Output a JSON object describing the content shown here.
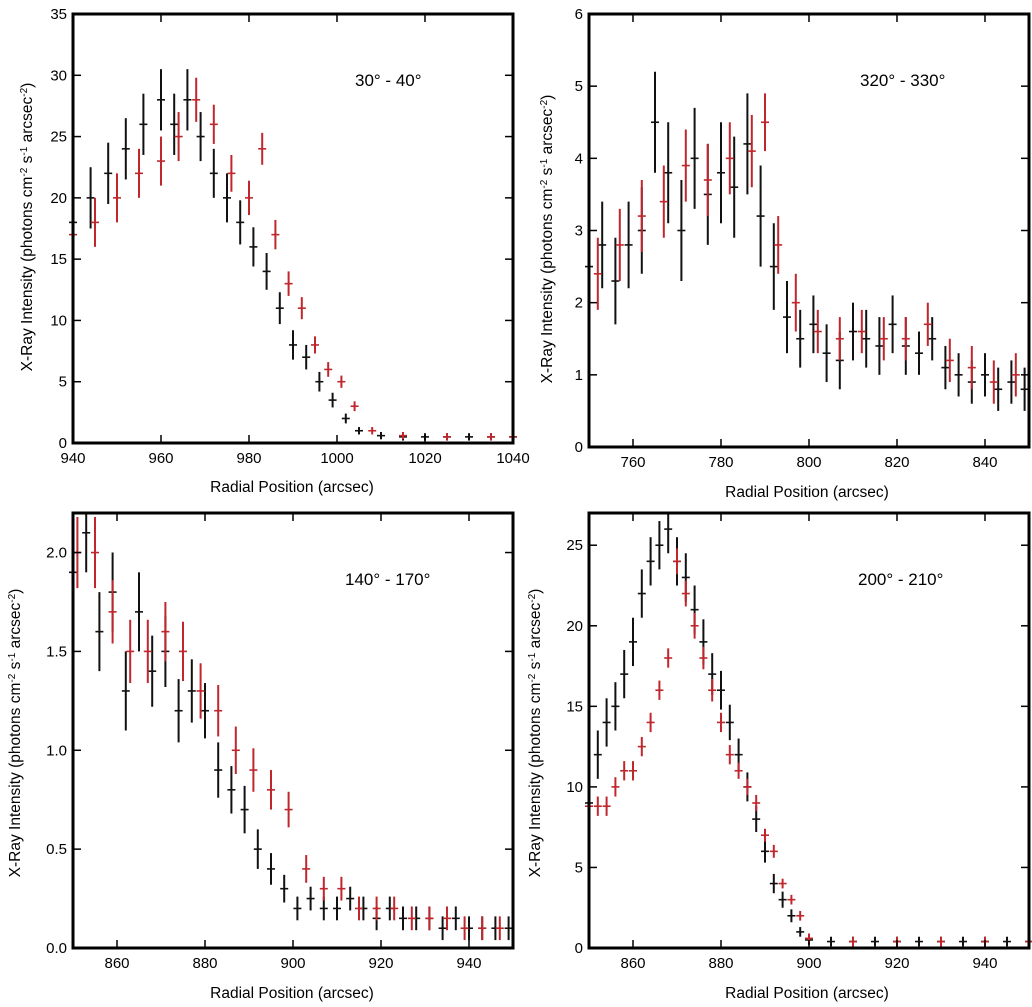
{
  "colors": {
    "series_black": "#111111",
    "series_red": "#c0272d",
    "frame": "#000000"
  },
  "chart_data": [
    {
      "type": "scatter",
      "title": "",
      "annotation": "30° - 40°",
      "xlabel": "Radial Position (arcsec)",
      "ylabel_main": "X-Ray Intensity (photons cm",
      "ylabel_sup1": "-2",
      "ylabel_mid1": " s",
      "ylabel_sup2": "-1",
      "ylabel_mid2": " arcsec",
      "ylabel_sup3": "-2",
      "ylabel_end": ")",
      "xlim": [
        940,
        1040
      ],
      "ylim": [
        0,
        35
      ],
      "xticks": [
        940,
        960,
        980,
        1000,
        1020,
        1040
      ],
      "xtick_labels": [
        "940",
        "960",
        "980",
        "1000",
        "1020",
        "1040"
      ],
      "yticks": [
        0,
        5,
        10,
        15,
        20,
        25,
        30,
        35
      ],
      "ytick_labels": [
        "0",
        "5",
        "10",
        "15",
        "20",
        "25",
        "30",
        "35"
      ],
      "series": [
        {
          "name": "black",
          "x": [
            940,
            944,
            948,
            952,
            956,
            960,
            963,
            966,
            969,
            972,
            975,
            978,
            981,
            984,
            987,
            990,
            993,
            996,
            999,
            1002,
            1005,
            1010,
            1015,
            1020,
            1025,
            1030,
            1035,
            1040
          ],
          "y": [
            18,
            20,
            22,
            24,
            26,
            28,
            26,
            28,
            25,
            22,
            20,
            18,
            16,
            14,
            11,
            8,
            7,
            5,
            3.5,
            2,
            1,
            0.6,
            0.5,
            0.5,
            0.5,
            0.5,
            0.5,
            0.5
          ],
          "err": [
            2.5,
            2.5,
            2.5,
            2.5,
            2.5,
            2.5,
            2.5,
            2.5,
            2,
            2,
            2,
            1.8,
            1.6,
            1.5,
            1.3,
            1.2,
            1,
            0.8,
            0.6,
            0.4,
            0.3,
            0.3,
            0.3,
            0.3,
            0.3,
            0.3,
            0.3,
            0.3
          ]
        },
        {
          "name": "red",
          "x": [
            940,
            945,
            950,
            955,
            960,
            964,
            968,
            972,
            976,
            980,
            983,
            986,
            989,
            992,
            995,
            998,
            1001,
            1004,
            1008,
            1015,
            1025,
            1035,
            1040
          ],
          "y": [
            17,
            18,
            20,
            22,
            23,
            25,
            28,
            26,
            22,
            20,
            24,
            17,
            13,
            11,
            8,
            6,
            5,
            3,
            1,
            0.6,
            0.5,
            0.5,
            0.5
          ],
          "err": [
            2,
            2,
            2,
            2,
            2,
            2,
            1.8,
            1.6,
            1.5,
            1.4,
            1.3,
            1.2,
            1,
            0.9,
            0.7,
            0.6,
            0.5,
            0.4,
            0.3,
            0.3,
            0.3,
            0.3,
            0.3
          ]
        }
      ]
    },
    {
      "type": "scatter",
      "title": "",
      "annotation": "320° - 330°",
      "xlabel": "Radial Position (arcsec)",
      "ylabel_main": "X-Ray Intensity (photons cm",
      "ylabel_sup1": "-2",
      "ylabel_mid1": " s",
      "ylabel_sup2": "-1",
      "ylabel_mid2": " arcsec",
      "ylabel_sup3": "-2",
      "ylabel_end": ")",
      "xlim": [
        750,
        850
      ],
      "ylim": [
        0,
        6
      ],
      "xticks": [
        760,
        780,
        800,
        820,
        840
      ],
      "xtick_labels": [
        "760",
        "780",
        "800",
        "820",
        "840"
      ],
      "yticks": [
        0,
        1,
        2,
        3,
        4,
        5,
        6
      ],
      "ytick_labels": [
        "0",
        "1",
        "2",
        "3",
        "4",
        "5",
        "6"
      ],
      "series": [
        {
          "name": "black",
          "x": [
            750,
            753,
            756,
            759,
            762,
            765,
            768,
            771,
            774,
            777,
            780,
            783,
            786,
            789,
            792,
            795,
            798,
            801,
            804,
            807,
            810,
            813,
            816,
            819,
            822,
            825,
            828,
            831,
            834,
            837,
            840,
            843,
            846,
            849
          ],
          "y": [
            2.5,
            2.8,
            2.3,
            2.8,
            3.0,
            4.5,
            3.8,
            3.0,
            4.0,
            3.5,
            3.8,
            3.6,
            4.2,
            3.2,
            2.5,
            1.8,
            1.5,
            1.7,
            1.3,
            1.2,
            1.6,
            1.5,
            1.4,
            1.7,
            1.4,
            1.3,
            1.5,
            1.1,
            1.0,
            0.9,
            1.0,
            0.8,
            0.9,
            0.8
          ],
          "err": [
            0.6,
            0.6,
            0.6,
            0.6,
            0.6,
            0.7,
            0.7,
            0.7,
            0.7,
            0.7,
            0.7,
            0.7,
            0.7,
            0.7,
            0.6,
            0.5,
            0.4,
            0.4,
            0.4,
            0.4,
            0.4,
            0.4,
            0.4,
            0.4,
            0.4,
            0.3,
            0.3,
            0.3,
            0.3,
            0.3,
            0.3,
            0.3,
            0.3,
            0.3
          ]
        },
        {
          "name": "red",
          "x": [
            752,
            757,
            762,
            767,
            772,
            777,
            782,
            787,
            790,
            793,
            797,
            802,
            807,
            812,
            817,
            822,
            827,
            832,
            837,
            842,
            847
          ],
          "y": [
            2.4,
            2.8,
            3.2,
            3.4,
            3.9,
            3.7,
            4.0,
            4.1,
            4.5,
            2.8,
            2.0,
            1.6,
            1.5,
            1.6,
            1.5,
            1.5,
            1.7,
            1.2,
            1.1,
            0.9,
            1.0
          ],
          "err": [
            0.5,
            0.5,
            0.5,
            0.5,
            0.5,
            0.5,
            0.5,
            0.5,
            0.4,
            0.4,
            0.4,
            0.3,
            0.3,
            0.3,
            0.3,
            0.3,
            0.3,
            0.3,
            0.3,
            0.3,
            0.3
          ]
        }
      ]
    },
    {
      "type": "scatter",
      "title": "",
      "annotation": "140° - 170°",
      "xlabel": "Radial Position (arcsec)",
      "ylabel_main": "X-Ray Intensity (photons cm",
      "ylabel_sup1": "-2",
      "ylabel_mid1": " s",
      "ylabel_sup2": "-1",
      "ylabel_mid2": " arcsec",
      "ylabel_sup3": "-2",
      "ylabel_end": ")",
      "xlim": [
        850,
        950
      ],
      "ylim": [
        0,
        2.2
      ],
      "xticks": [
        860,
        880,
        900,
        920,
        940
      ],
      "xtick_labels": [
        "860",
        "880",
        "900",
        "920",
        "940"
      ],
      "yticks": [
        0,
        0.5,
        1.0,
        1.5,
        2.0
      ],
      "ytick_labels": [
        "0.0",
        "0.5",
        "1.0",
        "1.5",
        "2.0"
      ],
      "series": [
        {
          "name": "black",
          "x": [
            850,
            853,
            856,
            859,
            862,
            865,
            868,
            871,
            874,
            877,
            880,
            883,
            886,
            889,
            892,
            895,
            898,
            901,
            904,
            907,
            910,
            913,
            916,
            919,
            922,
            925,
            928,
            931,
            934,
            937,
            940,
            943,
            946,
            949
          ],
          "y": [
            1.9,
            2.1,
            1.6,
            1.8,
            1.3,
            1.7,
            1.4,
            1.5,
            1.2,
            1.3,
            1.2,
            0.9,
            0.8,
            0.7,
            0.5,
            0.4,
            0.3,
            0.2,
            0.25,
            0.2,
            0.2,
            0.25,
            0.2,
            0.15,
            0.2,
            0.15,
            0.15,
            0.15,
            0.1,
            0.15,
            0.1,
            0.1,
            0.1,
            0.1
          ],
          "err": [
            0.2,
            0.2,
            0.2,
            0.2,
            0.2,
            0.2,
            0.18,
            0.18,
            0.16,
            0.16,
            0.14,
            0.14,
            0.12,
            0.12,
            0.1,
            0.08,
            0.07,
            0.06,
            0.06,
            0.06,
            0.06,
            0.06,
            0.06,
            0.06,
            0.06,
            0.06,
            0.06,
            0.06,
            0.06,
            0.06,
            0.06,
            0.06,
            0.06,
            0.06
          ]
        },
        {
          "name": "red",
          "x": [
            851,
            855,
            859,
            863,
            867,
            871,
            875,
            879,
            883,
            887,
            891,
            895,
            899,
            903,
            907,
            911,
            915,
            919,
            923,
            927,
            931,
            935,
            939,
            943,
            947
          ],
          "y": [
            2.0,
            2.0,
            1.7,
            1.5,
            1.5,
            1.6,
            1.5,
            1.3,
            1.2,
            1.0,
            0.9,
            0.8,
            0.7,
            0.4,
            0.3,
            0.3,
            0.2,
            0.2,
            0.2,
            0.15,
            0.15,
            0.15,
            0.1,
            0.1,
            0.1
          ],
          "err": [
            0.18,
            0.18,
            0.16,
            0.16,
            0.16,
            0.15,
            0.15,
            0.14,
            0.13,
            0.12,
            0.11,
            0.1,
            0.09,
            0.07,
            0.06,
            0.06,
            0.06,
            0.06,
            0.06,
            0.06,
            0.06,
            0.06,
            0.06,
            0.06,
            0.06
          ]
        }
      ]
    },
    {
      "type": "scatter",
      "title": "",
      "annotation": "200° - 210°",
      "xlabel": "Radial Position (arcsec)",
      "ylabel_main": "X-Ray Intensity (photons cm",
      "ylabel_sup1": "-2",
      "ylabel_mid1": " s",
      "ylabel_sup2": "-1",
      "ylabel_mid2": " arcsec",
      "ylabel_sup3": "-2",
      "ylabel_end": ")",
      "xlim": [
        850,
        950
      ],
      "ylim": [
        0,
        27
      ],
      "xticks": [
        860,
        880,
        900,
        920,
        940
      ],
      "xtick_labels": [
        "860",
        "880",
        "900",
        "920",
        "940"
      ],
      "yticks": [
        0,
        5,
        10,
        15,
        20,
        25
      ],
      "ytick_labels": [
        "0",
        "5",
        "10",
        "15",
        "20",
        "25"
      ],
      "series": [
        {
          "name": "black",
          "x": [
            850,
            852,
            854,
            856,
            858,
            860,
            862,
            864,
            866,
            868,
            870,
            872,
            874,
            876,
            878,
            880,
            882,
            884,
            886,
            888,
            890,
            892,
            894,
            896,
            898,
            900,
            905,
            910,
            915,
            920,
            925,
            930,
            935,
            940,
            945,
            950
          ],
          "y": [
            9,
            12,
            14,
            15,
            17,
            19,
            22,
            24,
            25,
            26,
            24,
            23,
            21,
            19,
            17,
            16,
            14,
            12,
            10,
            8,
            6,
            4,
            3,
            2,
            1,
            0.5,
            0.4,
            0.4,
            0.4,
            0.4,
            0.4,
            0.4,
            0.4,
            0.4,
            0.4,
            0.4
          ],
          "err": [
            1.5,
            1.5,
            1.5,
            1.5,
            1.5,
            1.5,
            1.5,
            1.5,
            1.5,
            1.5,
            1.5,
            1.5,
            1.5,
            1.4,
            1.3,
            1.2,
            1.1,
            1,
            0.9,
            0.8,
            0.7,
            0.6,
            0.5,
            0.4,
            0.3,
            0.3,
            0.3,
            0.3,
            0.3,
            0.3,
            0.3,
            0.3,
            0.3,
            0.3,
            0.3,
            0.3
          ]
        },
        {
          "name": "red",
          "x": [
            850,
            852,
            854,
            856,
            858,
            860,
            862,
            864,
            866,
            868,
            870,
            872,
            874,
            876,
            878,
            880,
            882,
            884,
            886,
            888,
            890,
            892,
            894,
            896,
            898,
            900,
            910,
            920,
            930,
            940,
            950
          ],
          "y": [
            8.8,
            8.8,
            8.8,
            10,
            11,
            11,
            12.5,
            14,
            16,
            18,
            24,
            22,
            20,
            18,
            16,
            14,
            12,
            11,
            10,
            9,
            7,
            6,
            4,
            3,
            2,
            0.6,
            0.4,
            0.4,
            0.4,
            0.4,
            0.4
          ],
          "err": [
            0.6,
            0.6,
            0.6,
            0.6,
            0.6,
            0.6,
            0.6,
            0.6,
            0.6,
            0.6,
            0.8,
            0.8,
            0.8,
            0.7,
            0.7,
            0.6,
            0.6,
            0.5,
            0.5,
            0.5,
            0.4,
            0.4,
            0.3,
            0.3,
            0.3,
            0.3,
            0.3,
            0.3,
            0.3,
            0.3,
            0.3
          ]
        }
      ]
    }
  ]
}
